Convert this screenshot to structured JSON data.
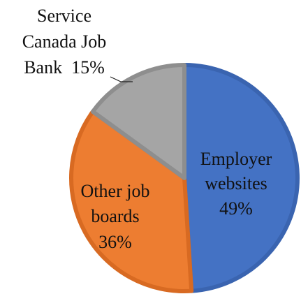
{
  "chart_data": {
    "type": "pie",
    "title": "",
    "slices": [
      {
        "label": "Employer websites",
        "value": 49,
        "display": "49%",
        "color": "#4472C4",
        "border": "#3A64B0",
        "label_lines": [
          "Employer",
          "websites",
          "49%"
        ]
      },
      {
        "label": "Other job boards",
        "value": 36,
        "display": "36%",
        "color": "#ED7D31",
        "border": "#D86A22",
        "label_lines": [
          "Other job",
          "boards",
          "36%"
        ]
      },
      {
        "label": "Service Canada Job Bank",
        "value": 15,
        "display": "15%",
        "color": "#A5A5A5",
        "border": "#8E8E8E",
        "label_lines": [
          "Service",
          "Canada Job",
          "Bank  15%"
        ]
      }
    ]
  }
}
